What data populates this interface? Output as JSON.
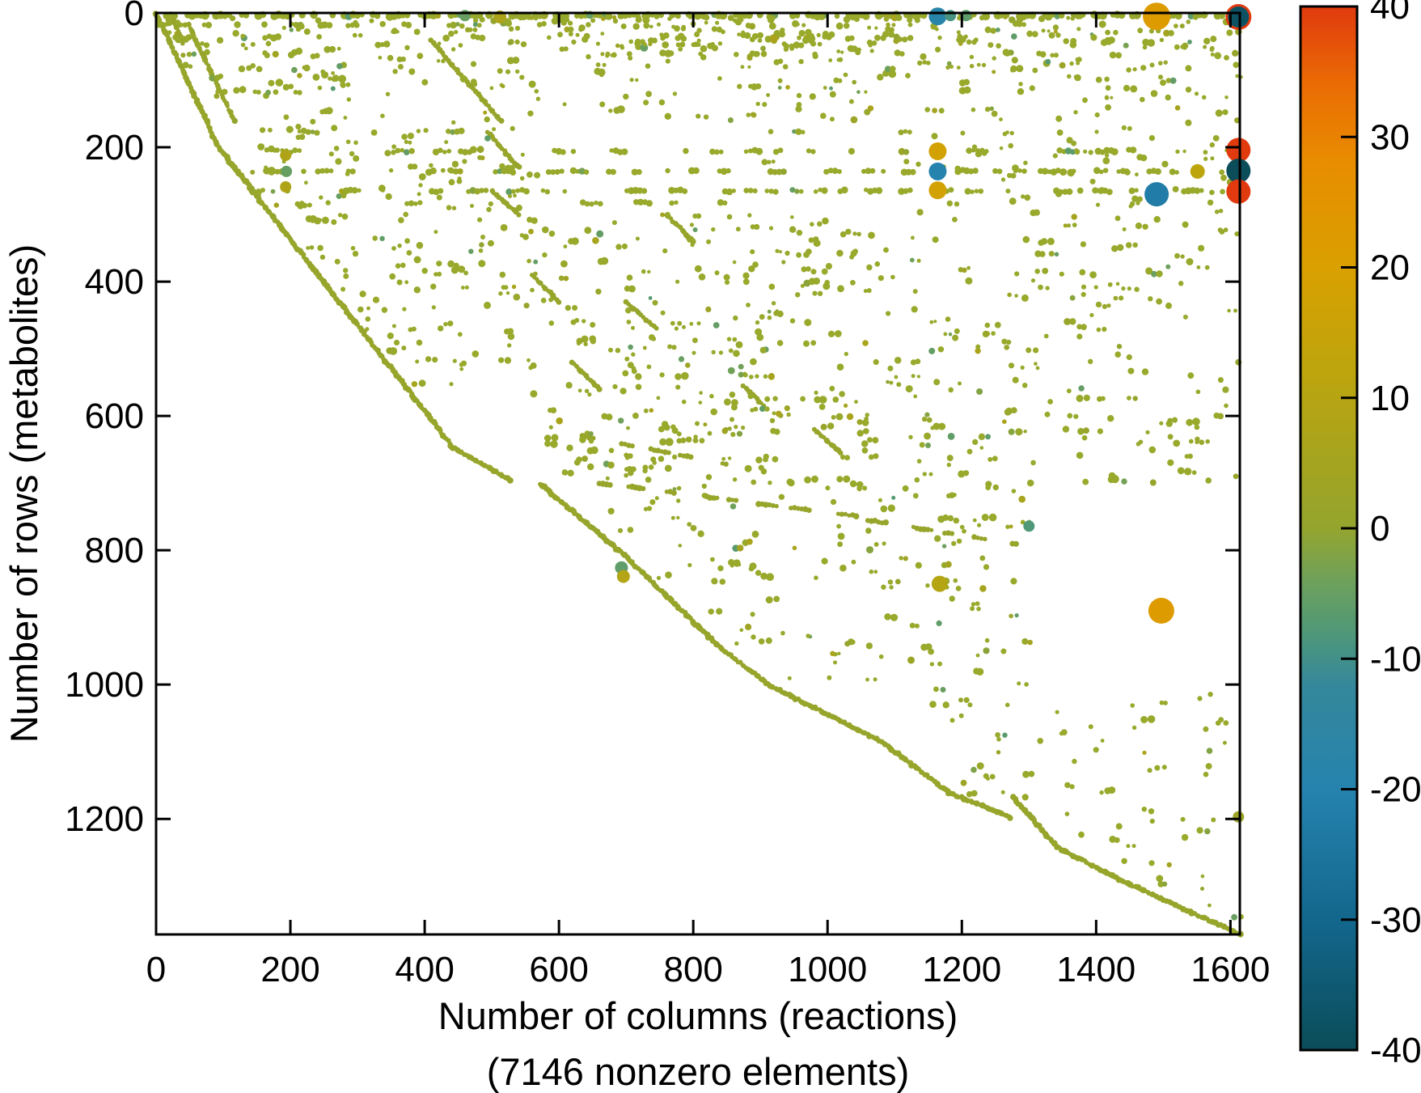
{
  "chart_data": {
    "type": "scatter",
    "kind": "sparse-matrix-spy-plot",
    "xlabel": "Number of columns (reactions)",
    "xlabel2": "(7146 nonzero elements)",
    "ylabel": "Number of rows (metabolites)",
    "nonzero_elements": 7146,
    "x_range": [
      0,
      1614
    ],
    "y_range": [
      0,
      1372
    ],
    "y_inverted": true,
    "grid": false,
    "x_ticks": [
      0,
      200,
      400,
      600,
      800,
      1000,
      1200,
      1400,
      1600
    ],
    "y_ticks": [
      0,
      200,
      400,
      600,
      800,
      1000,
      1200
    ],
    "marker_color_default": "#98a92b",
    "colorbar": {
      "min": -40,
      "max": 40,
      "position": "right",
      "ticks": [
        40,
        30,
        20,
        10,
        0,
        -10,
        -20,
        -30,
        -40
      ],
      "stops": [
        {
          "v": -40,
          "c": "#0b4d59"
        },
        {
          "v": -30,
          "c": "#13678d"
        },
        {
          "v": -20,
          "c": "#2583ae"
        },
        {
          "v": -12,
          "c": "#35889b"
        },
        {
          "v": -8,
          "c": "#4f9878"
        },
        {
          "v": -4,
          "c": "#6fa15b"
        },
        {
          "v": 0,
          "c": "#94a52e"
        },
        {
          "v": 6,
          "c": "#a8a41d"
        },
        {
          "v": 12,
          "c": "#bda50e"
        },
        {
          "v": 20,
          "c": "#d9a000"
        },
        {
          "v": 28,
          "c": "#e88d00"
        },
        {
          "v": 34,
          "c": "#ea6c04"
        },
        {
          "v": 40,
          "c": "#e03a0e"
        }
      ]
    },
    "notable_points": [
      {
        "x": 1612,
        "y": 6,
        "v": 40,
        "r": 16
      },
      {
        "x": 1612,
        "y": 6,
        "v": -38,
        "r": 13
      },
      {
        "x": 1490,
        "y": 5,
        "v": 22,
        "r": 17
      },
      {
        "x": 1164,
        "y": 5,
        "v": -18,
        "r": 11
      },
      {
        "x": 1183,
        "y": 4,
        "v": -9,
        "r": 7
      },
      {
        "x": 1206,
        "y": 4,
        "v": -6,
        "r": 7
      },
      {
        "x": 460,
        "y": 4,
        "v": -5,
        "r": 7
      },
      {
        "x": 512,
        "y": 6,
        "v": 7,
        "r": 8
      },
      {
        "x": 193,
        "y": 212,
        "v": 8,
        "r": 7
      },
      {
        "x": 194,
        "y": 236,
        "v": -5,
        "r": 7
      },
      {
        "x": 193,
        "y": 259,
        "v": 8,
        "r": 7
      },
      {
        "x": 1164,
        "y": 206,
        "v": 18,
        "r": 11
      },
      {
        "x": 1164,
        "y": 236,
        "v": -20,
        "r": 11
      },
      {
        "x": 1164,
        "y": 264,
        "v": 18,
        "r": 11
      },
      {
        "x": 1551,
        "y": 236,
        "v": 12,
        "r": 9
      },
      {
        "x": 1612,
        "y": 204,
        "v": 40,
        "r": 15
      },
      {
        "x": 1612,
        "y": 235,
        "v": -40,
        "r": 15
      },
      {
        "x": 1612,
        "y": 266,
        "v": 40,
        "r": 15
      },
      {
        "x": 1490,
        "y": 270,
        "v": -22,
        "r": 15
      },
      {
        "x": 1300,
        "y": 764,
        "v": -8,
        "r": 7
      },
      {
        "x": 693,
        "y": 826,
        "v": -6,
        "r": 8
      },
      {
        "x": 696,
        "y": 839,
        "v": 9,
        "r": 8
      },
      {
        "x": 1167,
        "y": 850,
        "v": 10,
        "r": 10
      },
      {
        "x": 1497,
        "y": 890,
        "v": 22,
        "r": 16
      },
      {
        "x": 1612,
        "y": 1197,
        "v": 2,
        "r": 7
      }
    ],
    "pattern": {
      "seed": 7146,
      "dot_radius": 3.3,
      "main_diagonal_segments": [
        [
          [
            0,
            0
          ],
          [
            93,
            200
          ],
          [
            249,
            400
          ],
          [
            406,
            600
          ],
          [
            442,
            647
          ],
          [
            527,
            695
          ]
        ],
        [
          [
            572,
            701
          ],
          [
            700,
            810
          ],
          [
            840,
            945
          ],
          [
            912,
            1000
          ],
          [
            1080,
            1085
          ],
          [
            1181,
            1161
          ],
          [
            1273,
            1198
          ]
        ],
        [
          [
            1277,
            1168
          ],
          [
            1342,
            1242
          ],
          [
            1430,
            1288
          ],
          [
            1614,
            1372
          ]
        ]
      ],
      "diagonal_hull": [
        [
          0,
          0
        ],
        [
          93,
          200
        ],
        [
          249,
          400
        ],
        [
          406,
          600
        ],
        [
          442,
          647
        ],
        [
          527,
          695
        ],
        [
          572,
          701
        ],
        [
          700,
          810
        ],
        [
          840,
          945
        ],
        [
          912,
          1000
        ],
        [
          1080,
          1085
        ],
        [
          1181,
          1161
        ],
        [
          1273,
          1198
        ],
        [
          1342,
          1242
        ],
        [
          1430,
          1288
        ],
        [
          1614,
          1372
        ]
      ],
      "secondary_diagonals": [
        [
          [
            48,
            18
          ],
          [
            117,
            161
          ]
        ],
        [
          [
            25,
            8
          ],
          [
            40,
            45
          ]
        ],
        [
          [
            108,
            222
          ],
          [
            152,
            272
          ]
        ],
        [
          [
            410,
            41
          ],
          [
            514,
            161
          ]
        ],
        [
          [
            494,
            177
          ],
          [
            540,
            230
          ]
        ],
        [
          [
            500,
            265
          ],
          [
            540,
            300
          ]
        ],
        [
          [
            560,
            390
          ],
          [
            600,
            430
          ]
        ],
        [
          [
            700,
            430
          ],
          [
            745,
            470
          ]
        ],
        [
          [
            620,
            520
          ],
          [
            660,
            560
          ]
        ],
        [
          [
            875,
            555
          ],
          [
            905,
            585
          ]
        ],
        [
          [
            760,
            300
          ],
          [
            800,
            340
          ]
        ],
        [
          [
            980,
            620
          ],
          [
            1020,
            655
          ]
        ]
      ],
      "shallow_dotted_lines": [
        [
          [
            635,
            630
          ],
          [
            850,
            672
          ]
        ],
        [
          [
            660,
            700
          ],
          [
            1050,
            750
          ]
        ],
        [
          [
            1060,
            755
          ],
          [
            1285,
            792
          ]
        ]
      ],
      "bands": [
        {
          "y": 4,
          "ranges": [
            [
              0,
              1614
            ]
          ],
          "density": 0.95,
          "r": 4.0
        },
        {
          "y": 18,
          "ranges": [
            [
              0,
              300
            ],
            [
              330,
              470
            ]
          ],
          "density": 0.5,
          "r": 3.4
        },
        {
          "y": 36,
          "ranges": [
            [
              25,
              300
            ],
            [
              470,
              560
            ]
          ],
          "density": 0.45,
          "r": 3.4
        },
        {
          "y": 47,
          "ranges": [
            [
              40,
              300
            ],
            [
              330,
              460
            ]
          ],
          "density": 0.4,
          "r": 3.4
        },
        {
          "y": 177,
          "ranges": [
            [
              168,
              460
            ],
            [
              900,
              1330
            ]
          ],
          "density": 0.32,
          "r": 3.2
        },
        {
          "y": 206,
          "ranges": [
            [
              150,
              500
            ],
            [
              590,
              1614
            ]
          ],
          "density": 0.5,
          "r": 3.4
        },
        {
          "y": 222,
          "ranges": [
            [
              620,
              1120
            ]
          ],
          "density": 0.25,
          "r": 3.0
        },
        {
          "y": 236,
          "ranges": [
            [
              140,
              1614
            ]
          ],
          "density": 0.65,
          "r": 3.4
        },
        {
          "y": 265,
          "ranges": [
            [
              140,
              1614
            ]
          ],
          "density": 0.55,
          "r": 3.4
        },
        {
          "y": 283,
          "ranges": [
            [
              160,
              500
            ],
            [
              620,
              1140
            ]
          ],
          "density": 0.3,
          "r": 3.2
        }
      ],
      "scatter_regions": [
        {
          "x": [
            15,
            600
          ],
          "y": [
            6,
            130
          ],
          "count": 120
        },
        {
          "x": [
            600,
            1160
          ],
          "y": [
            3,
            70
          ],
          "count": 160
        },
        {
          "x": [
            600,
            1160
          ],
          "y": [
            70,
            160
          ],
          "count": 60
        },
        {
          "x": [
            1160,
            1614
          ],
          "y": [
            3,
            130
          ],
          "count": 120
        },
        {
          "x": [
            150,
            560
          ],
          "y": [
            140,
            560
          ],
          "count": 170
        },
        {
          "x": [
            560,
            1130
          ],
          "y": [
            300,
            700
          ],
          "count": 300
        },
        {
          "x": [
            1130,
            1610
          ],
          "y": [
            140,
            700
          ],
          "count": 240
        },
        {
          "x": [
            560,
            1300
          ],
          "y": [
            700,
            1010
          ],
          "count": 130
        },
        {
          "x": [
            1150,
            1610
          ],
          "y": [
            1010,
            1350
          ],
          "count": 70
        }
      ],
      "right_edge_dots": [
        [
          1612,
          28
        ],
        [
          1607,
          60
        ],
        [
          1610,
          160
        ],
        [
          1604,
          240
        ],
        [
          1600,
          252
        ],
        [
          1612,
          520
        ],
        [
          1608,
          690
        ]
      ]
    }
  }
}
